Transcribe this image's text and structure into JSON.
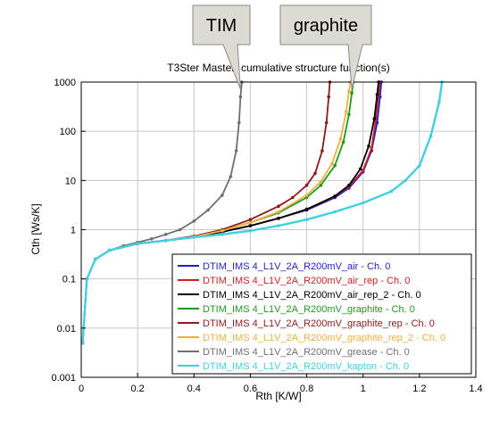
{
  "chart_data": {
    "type": "line",
    "title": "T3Ster Master: cumulative structure function(s)",
    "xlabel": "Rth  [K/W]",
    "ylabel": "Cth  [Ws/K]",
    "xlim": [
      0,
      1.4
    ],
    "ylim": [
      0.001,
      1000
    ],
    "yscale": "log",
    "grid": true,
    "legend_position": "bottom-right",
    "xticks": [
      "0",
      "0.2",
      "0.4",
      "0.6",
      "0.8",
      "1",
      "1.2",
      "1.4"
    ],
    "yticks": [
      "0.001",
      "0.01",
      "0.1",
      "1",
      "10",
      "100",
      "1000"
    ],
    "callouts": [
      {
        "text": "TIM",
        "target_series": "DTIM_IMS 4_L1V_2A_R200mV_grease - Ch. 0"
      },
      {
        "text": "graphite",
        "target_series": "DTIM_IMS 4_L1V_2A_R200mV_graphite - Ch. 0"
      }
    ],
    "series": [
      {
        "name": "DTIM_IMS 4_L1V_2A_R200mV_air - Ch. 0",
        "color": "#1f1fd0",
        "x": [
          0.005,
          0.02,
          0.05,
          0.1,
          0.2,
          0.3,
          0.4,
          0.5,
          0.6,
          0.7,
          0.8,
          0.9,
          0.95,
          1.0,
          1.03,
          1.05,
          1.06,
          1.065
        ],
        "y": [
          0.005,
          0.1,
          0.25,
          0.38,
          0.52,
          0.6,
          0.72,
          0.9,
          1.2,
          1.7,
          2.5,
          4.5,
          7,
          15,
          40,
          150,
          500,
          1000
        ]
      },
      {
        "name": "DTIM_IMS 4_L1V_2A_R200mV_air_rep - Ch. 0",
        "color": "#d01f1f",
        "x": [
          0.005,
          0.02,
          0.05,
          0.1,
          0.2,
          0.3,
          0.4,
          0.5,
          0.6,
          0.7,
          0.8,
          0.9,
          0.95,
          1.0,
          1.03,
          1.045,
          1.055,
          1.06
        ],
        "y": [
          0.005,
          0.1,
          0.25,
          0.38,
          0.52,
          0.6,
          0.72,
          0.9,
          1.2,
          1.7,
          2.6,
          4.7,
          7.5,
          16,
          45,
          170,
          550,
          1000
        ]
      },
      {
        "name": "DTIM_IMS 4_L1V_2A_R200mV_air_rep_2 - Ch. 0",
        "color": "#000000",
        "x": [
          0.005,
          0.02,
          0.05,
          0.1,
          0.2,
          0.3,
          0.4,
          0.5,
          0.6,
          0.7,
          0.8,
          0.9,
          0.95,
          0.99,
          1.02,
          1.04,
          1.05,
          1.055
        ],
        "y": [
          0.005,
          0.1,
          0.25,
          0.38,
          0.52,
          0.6,
          0.72,
          0.9,
          1.2,
          1.7,
          2.6,
          4.8,
          8,
          17,
          50,
          180,
          560,
          1000
        ]
      },
      {
        "name": "DTIM_IMS 4_L1V_2A_R200mV_graphite - Ch. 0",
        "color": "#1f9a1f",
        "x": [
          0.005,
          0.02,
          0.05,
          0.1,
          0.2,
          0.3,
          0.4,
          0.5,
          0.6,
          0.7,
          0.8,
          0.85,
          0.9,
          0.93,
          0.95,
          0.96,
          0.965
        ],
        "y": [
          0.005,
          0.1,
          0.25,
          0.38,
          0.52,
          0.6,
          0.72,
          0.95,
          1.4,
          2.2,
          4.5,
          8,
          20,
          60,
          220,
          600,
          1000
        ]
      },
      {
        "name": "DTIM_IMS 4_L1V_2A_R200mV_graphite_rep - Ch. 0",
        "color": "#8b1a1a",
        "x": [
          0.005,
          0.02,
          0.05,
          0.1,
          0.2,
          0.3,
          0.4,
          0.5,
          0.6,
          0.7,
          0.75,
          0.8,
          0.83,
          0.855,
          0.87,
          0.878,
          0.882
        ],
        "y": [
          0.005,
          0.1,
          0.25,
          0.38,
          0.52,
          0.6,
          0.74,
          1.0,
          1.6,
          3.0,
          4.5,
          8,
          14,
          40,
          150,
          500,
          1000
        ]
      },
      {
        "name": "DTIM_IMS 4_L1V_2A_R200mV_graphite_rep_2 - Ch. 0",
        "color": "#f0b040",
        "x": [
          0.005,
          0.02,
          0.05,
          0.1,
          0.2,
          0.3,
          0.4,
          0.5,
          0.6,
          0.7,
          0.8,
          0.85,
          0.89,
          0.92,
          0.94,
          0.95,
          0.955
        ],
        "y": [
          0.005,
          0.1,
          0.25,
          0.38,
          0.52,
          0.6,
          0.72,
          0.95,
          1.4,
          2.3,
          5,
          9.5,
          22,
          70,
          250,
          650,
          1000
        ]
      },
      {
        "name": "DTIM_IMS 4_L1V_2A_R200mV_grease - Ch. 0",
        "color": "#707070",
        "x": [
          0.005,
          0.02,
          0.05,
          0.1,
          0.15,
          0.2,
          0.25,
          0.3,
          0.35,
          0.4,
          0.45,
          0.5,
          0.53,
          0.55,
          0.56,
          0.565,
          0.57
        ],
        "y": [
          0.005,
          0.1,
          0.25,
          0.38,
          0.47,
          0.55,
          0.65,
          0.8,
          1.0,
          1.5,
          2.5,
          5,
          12,
          40,
          150,
          500,
          1000
        ]
      },
      {
        "name": "DTIM_IMS 4_L1V_2A_R200mV_kapton - Ch. 0",
        "color": "#40d0e0",
        "x": [
          0.005,
          0.02,
          0.05,
          0.1,
          0.2,
          0.3,
          0.4,
          0.5,
          0.6,
          0.7,
          0.8,
          0.9,
          1.0,
          1.1,
          1.15,
          1.2,
          1.24,
          1.27,
          1.28
        ],
        "y": [
          0.005,
          0.1,
          0.25,
          0.38,
          0.52,
          0.6,
          0.7,
          0.8,
          0.95,
          1.2,
          1.6,
          2.3,
          3.5,
          6,
          10,
          20,
          80,
          400,
          1000
        ]
      }
    ]
  },
  "colors": {
    "grid": "#c8c8c8",
    "callout_fill": "#ddd9d3",
    "callout_stroke": "#8a8a8a"
  }
}
